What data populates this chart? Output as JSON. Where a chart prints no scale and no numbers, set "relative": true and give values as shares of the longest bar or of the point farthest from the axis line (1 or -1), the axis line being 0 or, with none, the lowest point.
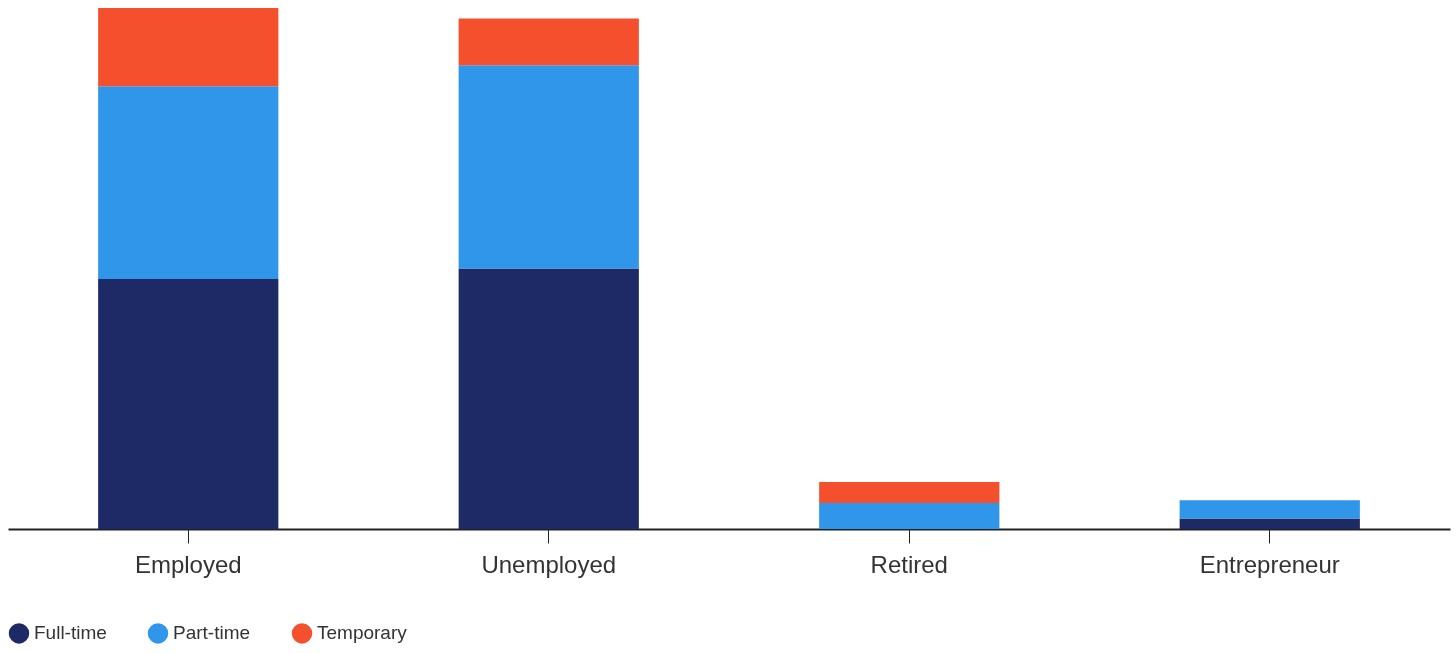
{
  "chart_data": {
    "type": "bar",
    "stacked": true,
    "relative": true,
    "categories": [
      "Employed",
      "Unemployed",
      "Retired",
      "Entrepreneur"
    ],
    "legend": "bottom",
    "grid": false,
    "series": [
      {
        "name": "Full-time",
        "color": "#1e2a66",
        "values": [
          0.48,
          0.5,
          0,
          0.02
        ]
      },
      {
        "name": "Part-time",
        "color": "#3096ea",
        "values": [
          0.37,
          0.39,
          0.05,
          0.035
        ]
      },
      {
        "name": "Temporary",
        "color": "#f5502e",
        "values": [
          0.15,
          0.09,
          0.04,
          0
        ]
      }
    ]
  }
}
